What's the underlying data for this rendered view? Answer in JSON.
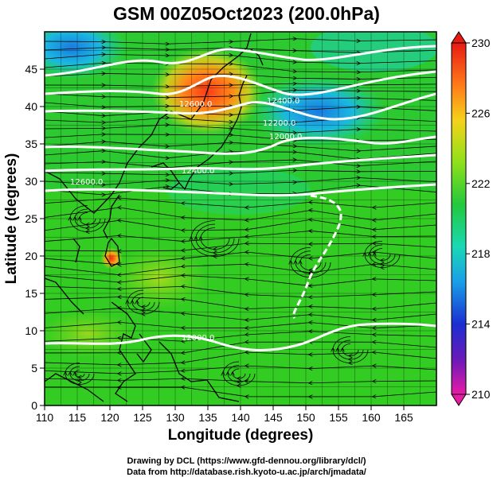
{
  "title": "GSM 00Z05Oct2023 (200.0hPa)",
  "credits": {
    "line1": "Drawing by DCL (https://www.gfd-dennou.org/library/dcl/)",
    "line2": "Data from http://database.rish.kyoto-u.ac.jp/arch/jmadata/"
  },
  "map": {
    "x_axis_title": "Longitude (degrees)",
    "y_axis_title": "Latitude  (degrees)",
    "lon_range": [
      110,
      170
    ],
    "lat_range": [
      0,
      50
    ],
    "lon_ticks": [
      "110",
      "115",
      "120",
      "125",
      "130",
      "135",
      "140",
      "145",
      "150",
      "155",
      "160",
      "165"
    ],
    "lat_ticks": [
      "0",
      "5",
      "10",
      "15",
      "20",
      "25",
      "30",
      "35",
      "40",
      "45"
    ],
    "contour_labels": [
      "12600.0",
      "12400.0",
      "12200.0",
      "12000.0",
      "12400.0",
      "12600.0",
      "12000.0"
    ]
  },
  "colorbar": {
    "ticks": [
      "230",
      "226",
      "222",
      "218",
      "214",
      "210"
    ]
  },
  "colors": {
    "field_base": "#33cc22",
    "warm": "#ff5522",
    "cool": "#22aadd",
    "contour": "#ffffff",
    "streamline": "#000000"
  }
}
